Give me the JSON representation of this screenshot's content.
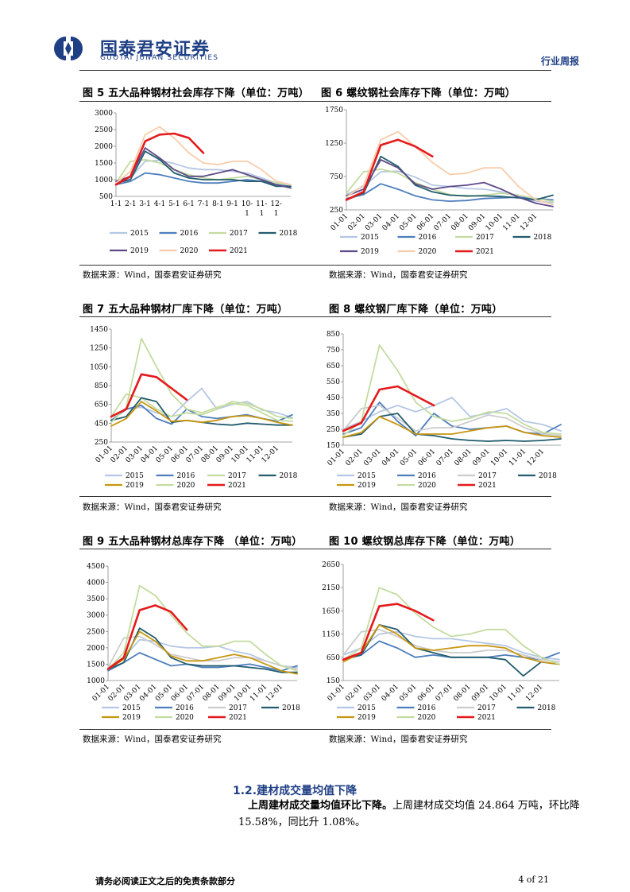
{
  "header": {
    "brand_cn": "国泰君安证券",
    "brand_en": "GUOTAI JUNAN SECURITIES",
    "report_type": "行业周报",
    "colors": {
      "brand": "#1f3f85"
    }
  },
  "source_text": "数据来源：Wind，国泰君安证券研究",
  "chart_data": [
    {
      "id": "fig5",
      "type": "line",
      "title": "图 5 五大品种钢材社会库存下降（单位：万吨）",
      "xlabels": [
        "1-1",
        "2-1",
        "3-1",
        "4-1",
        "5-1",
        "6-1",
        "7-1",
        "8-1",
        "9-1",
        "10-1",
        "11-1",
        "12-1"
      ],
      "xlabels_wrapped": [
        [
          "1-1"
        ],
        [
          "2-1"
        ],
        [
          "3-1"
        ],
        [
          "4-1"
        ],
        [
          "5-1"
        ],
        [
          "6-1"
        ],
        [
          "7-1"
        ],
        [
          "8-1"
        ],
        [
          "9-1"
        ],
        [
          "10-",
          "1"
        ],
        [
          "11-",
          "1"
        ],
        [
          "12-",
          "1"
        ]
      ],
      "ylim": [
        500,
        3000
      ],
      "yticks": [
        500,
        1000,
        1500,
        2000,
        2500,
        3000
      ],
      "legend_rows": [
        [
          "2015",
          "2016",
          "2017",
          "2018"
        ],
        [
          "2019",
          "2020",
          "2021"
        ]
      ],
      "series": [
        {
          "name": "2015",
          "color": "#b5c7e5",
          "values": [
            900,
            1050,
            1550,
            1580,
            1480,
            1350,
            1300,
            1300,
            1250,
            1200,
            1050,
            900,
            850
          ]
        },
        {
          "name": "2016",
          "color": "#4e7ebd",
          "values": [
            850,
            950,
            1200,
            1150,
            1050,
            950,
            900,
            900,
            950,
            1000,
            950,
            850,
            800
          ]
        },
        {
          "name": "2017",
          "color": "#c4dba0",
          "values": [
            900,
            1550,
            1600,
            1500,
            1300,
            1150,
            1050,
            1000,
            1050,
            1100,
            1000,
            900,
            850
          ]
        },
        {
          "name": "2018",
          "color": "#225c6e",
          "values": [
            900,
            1000,
            1850,
            1600,
            1200,
            1050,
            1000,
            1000,
            1000,
            950,
            950,
            800,
            800
          ]
        },
        {
          "name": "2019",
          "color": "#5d4a87",
          "values": [
            950,
            1100,
            1950,
            1650,
            1300,
            1100,
            1100,
            1200,
            1300,
            1150,
            1000,
            850,
            750
          ]
        },
        {
          "name": "2020",
          "color": "#f8ccaa",
          "values": [
            900,
            1250,
            2350,
            2580,
            2250,
            1800,
            1500,
            1450,
            1550,
            1550,
            1300,
            950,
            850
          ]
        },
        {
          "name": "2021",
          "color": "#e41a1c",
          "values": [
            850,
            1100,
            2150,
            2350,
            2380,
            2250,
            1800
          ]
        }
      ]
    },
    {
      "id": "fig6",
      "type": "line",
      "title": "图 6 螺纹钢社会库存下降（单位：万吨）",
      "xlabels": [
        "01-01",
        "02-01",
        "03-01",
        "04-01",
        "05-01",
        "06-01",
        "07-01",
        "08-01",
        "09-01",
        "10-01",
        "11-01",
        "12-01"
      ],
      "ylim": [
        250,
        1750
      ],
      "yticks": [
        250,
        750,
        1250,
        1750
      ],
      "legend_rows": [
        [
          "2015",
          "2016",
          "2017",
          "2018"
        ],
        [
          "2019",
          "2020",
          "2021"
        ]
      ],
      "series": [
        {
          "name": "2015",
          "color": "#b5c7e5",
          "values": [
            480,
            600,
            820,
            830,
            740,
            620,
            600,
            570,
            560,
            520,
            450,
            380,
            360
          ]
        },
        {
          "name": "2016",
          "color": "#4e7ebd",
          "values": [
            420,
            480,
            640,
            560,
            460,
            400,
            380,
            390,
            420,
            430,
            440,
            420,
            400
          ]
        },
        {
          "name": "2017",
          "color": "#c4dba0",
          "values": [
            500,
            820,
            860,
            800,
            660,
            560,
            480,
            450,
            470,
            500,
            470,
            420,
            380
          ]
        },
        {
          "name": "2018",
          "color": "#225c6e",
          "values": [
            400,
            500,
            1050,
            900,
            620,
            520,
            470,
            460,
            460,
            450,
            430,
            400,
            470
          ]
        },
        {
          "name": "2019",
          "color": "#5d4a87",
          "values": [
            460,
            560,
            1000,
            880,
            640,
            560,
            600,
            620,
            660,
            560,
            440,
            350,
            300
          ]
        },
        {
          "name": "2020",
          "color": "#f8ccaa",
          "values": [
            440,
            620,
            1300,
            1420,
            1200,
            960,
            780,
            800,
            880,
            880,
            600,
            400,
            330
          ]
        },
        {
          "name": "2021",
          "color": "#e41a1c",
          "values": [
            400,
            520,
            1220,
            1300,
            1200,
            1050
          ]
        }
      ]
    },
    {
      "id": "fig7",
      "type": "line",
      "title": "图 7 五大品种钢材厂库下降（单位：万吨）",
      "xlabels": [
        "01-01",
        "02-01",
        "03-01",
        "04-01",
        "05-01",
        "06-01",
        "07-01",
        "08-01",
        "09-01",
        "10-01",
        "11-01",
        "12-01"
      ],
      "ylim": [
        250,
        1450
      ],
      "yticks": [
        250,
        450,
        650,
        850,
        1050,
        1250,
        1450
      ],
      "legend_rows": [
        [
          "2015",
          "2016",
          "2017",
          "2018"
        ],
        [
          "2019",
          "2020",
          "2021"
        ]
      ],
      "series": [
        {
          "name": "2015",
          "color": "#b5c7e5",
          "values": [
            520,
            600,
            620,
            560,
            520,
            680,
            820,
            600,
            650,
            680,
            590,
            560,
            510
          ]
        },
        {
          "name": "2016",
          "color": "#4e7ebd",
          "values": [
            480,
            600,
            640,
            500,
            440,
            600,
            520,
            500,
            520,
            540,
            500,
            470,
            540
          ]
        },
        {
          "name": "2017",
          "color": "#c4dba0",
          "values": [
            520,
            760,
            720,
            600,
            520,
            560,
            540,
            600,
            680,
            660,
            600,
            520,
            500
          ]
        },
        {
          "name": "2018",
          "color": "#225c6e",
          "values": [
            480,
            520,
            720,
            680,
            460,
            480,
            460,
            440,
            430,
            450,
            440,
            430,
            430
          ]
        },
        {
          "name": "2019",
          "color": "#c8960f",
          "values": [
            420,
            500,
            680,
            580,
            470,
            480,
            460,
            480,
            520,
            530,
            500,
            460,
            430
          ]
        },
        {
          "name": "2020",
          "color": "#c4dba0",
          "values": [
            460,
            620,
            1350,
            1050,
            760,
            600,
            560,
            620,
            660,
            640,
            560,
            480,
            470
          ]
        },
        {
          "name": "2021",
          "color": "#e41a1c",
          "values": [
            520,
            600,
            970,
            940,
            820,
            700
          ]
        }
      ]
    },
    {
      "id": "fig8",
      "type": "line",
      "title": "图 8 螺纹钢厂库下降（单位：万吨）",
      "xlabels": [
        "01-01",
        "02-01",
        "03-01",
        "04-01",
        "05-01",
        "06-01",
        "07-01",
        "08-01",
        "09-01",
        "10-01",
        "11-01",
        "12-01"
      ],
      "ylim": [
        150,
        850
      ],
      "yticks": [
        150,
        250,
        350,
        450,
        550,
        650,
        750,
        850
      ],
      "legend_rows": [
        [
          "2015",
          "2016",
          "2017",
          "2018"
        ],
        [
          "2019",
          "2020",
          "2021"
        ]
      ],
      "series": [
        {
          "name": "2015",
          "color": "#b5c7e5",
          "values": [
            250,
            300,
            360,
            400,
            360,
            400,
            450,
            330,
            350,
            380,
            300,
            280,
            240
          ]
        },
        {
          "name": "2016",
          "color": "#4e7ebd",
          "values": [
            220,
            260,
            420,
            300,
            210,
            350,
            270,
            250,
            260,
            270,
            230,
            220,
            280
          ]
        },
        {
          "name": "2017",
          "color": "#cccccc",
          "values": [
            240,
            380,
            400,
            320,
            240,
            260,
            260,
            300,
            340,
            320,
            260,
            220,
            210
          ]
        },
        {
          "name": "2018",
          "color": "#225c6e",
          "values": [
            200,
            220,
            330,
            350,
            220,
            210,
            190,
            180,
            175,
            180,
            175,
            180,
            190
          ]
        },
        {
          "name": "2019",
          "color": "#c8960f",
          "values": [
            200,
            230,
            330,
            280,
            220,
            220,
            220,
            240,
            260,
            270,
            230,
            210,
            200
          ]
        },
        {
          "name": "2020",
          "color": "#c4dba0",
          "values": [
            210,
            300,
            780,
            620,
            420,
            330,
            300,
            320,
            360,
            350,
            280,
            230,
            220
          ]
        },
        {
          "name": "2021",
          "color": "#e41a1c",
          "values": [
            240,
            290,
            500,
            520,
            460,
            400
          ]
        }
      ]
    },
    {
      "id": "fig9",
      "type": "line",
      "title": "图 9 五大品种钢材总库存下降 （单位：万吨）",
      "xlabels": [
        "01-01",
        "02-01",
        "03-01",
        "04-01",
        "05-01",
        "06-01",
        "07-01",
        "08-01",
        "09-01",
        "10-01",
        "11-01",
        "12-01"
      ],
      "ylim": [
        1000,
        4500
      ],
      "yticks": [
        1000,
        1500,
        2000,
        2500,
        3000,
        3500,
        4000,
        4500
      ],
      "legend_rows": [
        [
          "2015",
          "2016",
          "2017",
          "2018"
        ],
        [
          "2019",
          "2020",
          "2021"
        ]
      ],
      "series": [
        {
          "name": "2015",
          "color": "#b5c7e5",
          "values": [
            1400,
            1700,
            2250,
            2200,
            2050,
            2000,
            2000,
            2050,
            1900,
            1800,
            1600,
            1450,
            1400
          ]
        },
        {
          "name": "2016",
          "color": "#4e7ebd",
          "values": [
            1300,
            1550,
            1850,
            1650,
            1450,
            1500,
            1400,
            1400,
            1450,
            1500,
            1400,
            1300,
            1450
          ]
        },
        {
          "name": "2017",
          "color": "#cccccc",
          "values": [
            1400,
            2300,
            2350,
            2100,
            1800,
            1700,
            1600,
            1600,
            1700,
            1700,
            1600,
            1450,
            1350
          ]
        },
        {
          "name": "2018",
          "color": "#225c6e",
          "values": [
            1350,
            1550,
            2600,
            2300,
            1700,
            1500,
            1450,
            1450,
            1450,
            1400,
            1350,
            1250,
            1250
          ]
        },
        {
          "name": "2019",
          "color": "#c8960f",
          "values": [
            1350,
            1650,
            2500,
            2200,
            1750,
            1600,
            1600,
            1700,
            1800,
            1700,
            1500,
            1300,
            1200
          ]
        },
        {
          "name": "2020",
          "color": "#c4dba0",
          "values": [
            1350,
            1850,
            3900,
            3600,
            3000,
            2450,
            2050,
            2050,
            2200,
            2200,
            1800,
            1450,
            1300
          ]
        },
        {
          "name": "2021",
          "color": "#e41a1c",
          "values": [
            1350,
            1700,
            3150,
            3300,
            3100,
            2550
          ]
        }
      ]
    },
    {
      "id": "fig10",
      "type": "line",
      "title": "图 10 螺纹钢总库存下降（单位：万吨）",
      "xlabels": [
        "01-01",
        "02-01",
        "03-01",
        "04-01",
        "05-01",
        "06-01",
        "07-01",
        "08-01",
        "09-01",
        "10-01",
        "11-01",
        "12-01"
      ],
      "ylim": [
        150,
        2650
      ],
      "yticks": [
        150,
        650,
        1150,
        1650,
        2150,
        2650
      ],
      "legend_rows": [
        [
          "2015",
          "2016",
          "2017",
          "2018"
        ],
        [
          "2019",
          "2020",
          "2021"
        ]
      ],
      "series": [
        {
          "name": "2015",
          "color": "#b5c7e5",
          "values": [
            700,
            850,
            1150,
            1200,
            1100,
            1050,
            1050,
            1000,
            950,
            900,
            750,
            650,
            600
          ]
        },
        {
          "name": "2016",
          "color": "#4e7ebd",
          "values": [
            600,
            700,
            1000,
            850,
            650,
            700,
            650,
            650,
            650,
            700,
            650,
            600,
            750
          ]
        },
        {
          "name": "2017",
          "color": "#cccccc",
          "values": [
            700,
            1200,
            1250,
            1100,
            900,
            800,
            750,
            750,
            800,
            800,
            700,
            600,
            550
          ]
        },
        {
          "name": "2018",
          "color": "#225c6e",
          "values": [
            600,
            700,
            1350,
            1250,
            850,
            750,
            650,
            650,
            650,
            600,
            250,
            550,
            500
          ]
        },
        {
          "name": "2019",
          "color": "#c8960f",
          "values": [
            550,
            750,
            1350,
            1150,
            850,
            800,
            850,
            900,
            900,
            850,
            650,
            550,
            500
          ]
        },
        {
          "name": "2020",
          "color": "#c4dba0",
          "values": [
            600,
            850,
            2150,
            2000,
            1600,
            1300,
            1100,
            1150,
            1250,
            1250,
            900,
            650,
            500
          ]
        },
        {
          "name": "2021",
          "color": "#e41a1c",
          "values": [
            600,
            750,
            1750,
            1800,
            1650,
            1450
          ]
        }
      ]
    }
  ],
  "section": {
    "title": "1.2.建材成交量均值下降",
    "lead": "上周建材成交量均值环比下降。",
    "body1": "上周建材成交均值 24.864 万吨，环比降",
    "body2": "15.58%，同比升 1.08%。"
  },
  "footer": {
    "disclaimer": "请务必阅读正文之后的免责条款部分",
    "page": "4 of 21"
  }
}
